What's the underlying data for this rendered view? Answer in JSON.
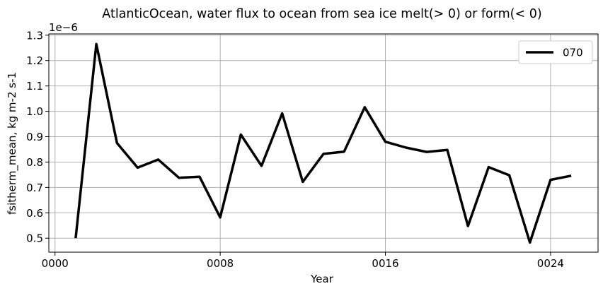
{
  "chart_data": {
    "type": "line",
    "title": "AtlanticOcean, water flux to ocean from sea ice melt(> 0) or form(< 0)",
    "xlabel": "Year",
    "ylabel": "fsitherm_mean, kg m-2 s-1",
    "y_scale_label": "1e−6",
    "xlim": [
      -0.3,
      26.3
    ],
    "ylim": [
      0.445,
      1.305
    ],
    "x_ticks": [
      0,
      8,
      16,
      24
    ],
    "x_tick_labels": [
      "0000",
      "0008",
      "0016",
      "0024"
    ],
    "y_ticks": [
      0.5,
      0.6,
      0.7,
      0.8,
      0.9,
      1.0,
      1.1,
      1.2,
      1.3
    ],
    "y_tick_labels": [
      "0.5",
      "0.6",
      "0.7",
      "0.8",
      "0.9",
      "1.0",
      "1.1",
      "1.2",
      "1.3"
    ],
    "grid": true,
    "legend_position": "top-right",
    "series": [
      {
        "name": "070",
        "color": "#000000",
        "x": [
          1,
          2,
          3,
          4,
          5,
          6,
          7,
          8,
          9,
          10,
          11,
          12,
          13,
          14,
          15,
          16,
          17,
          18,
          19,
          20,
          21,
          22,
          23,
          24,
          25
        ],
        "values": [
          0.5,
          1.265,
          0.875,
          0.778,
          0.81,
          0.738,
          0.742,
          0.582,
          0.908,
          0.785,
          0.992,
          0.722,
          0.832,
          0.841,
          1.016,
          0.88,
          0.857,
          0.84,
          0.848,
          0.548,
          0.78,
          0.748,
          0.483,
          0.73,
          0.746
        ]
      }
    ]
  }
}
